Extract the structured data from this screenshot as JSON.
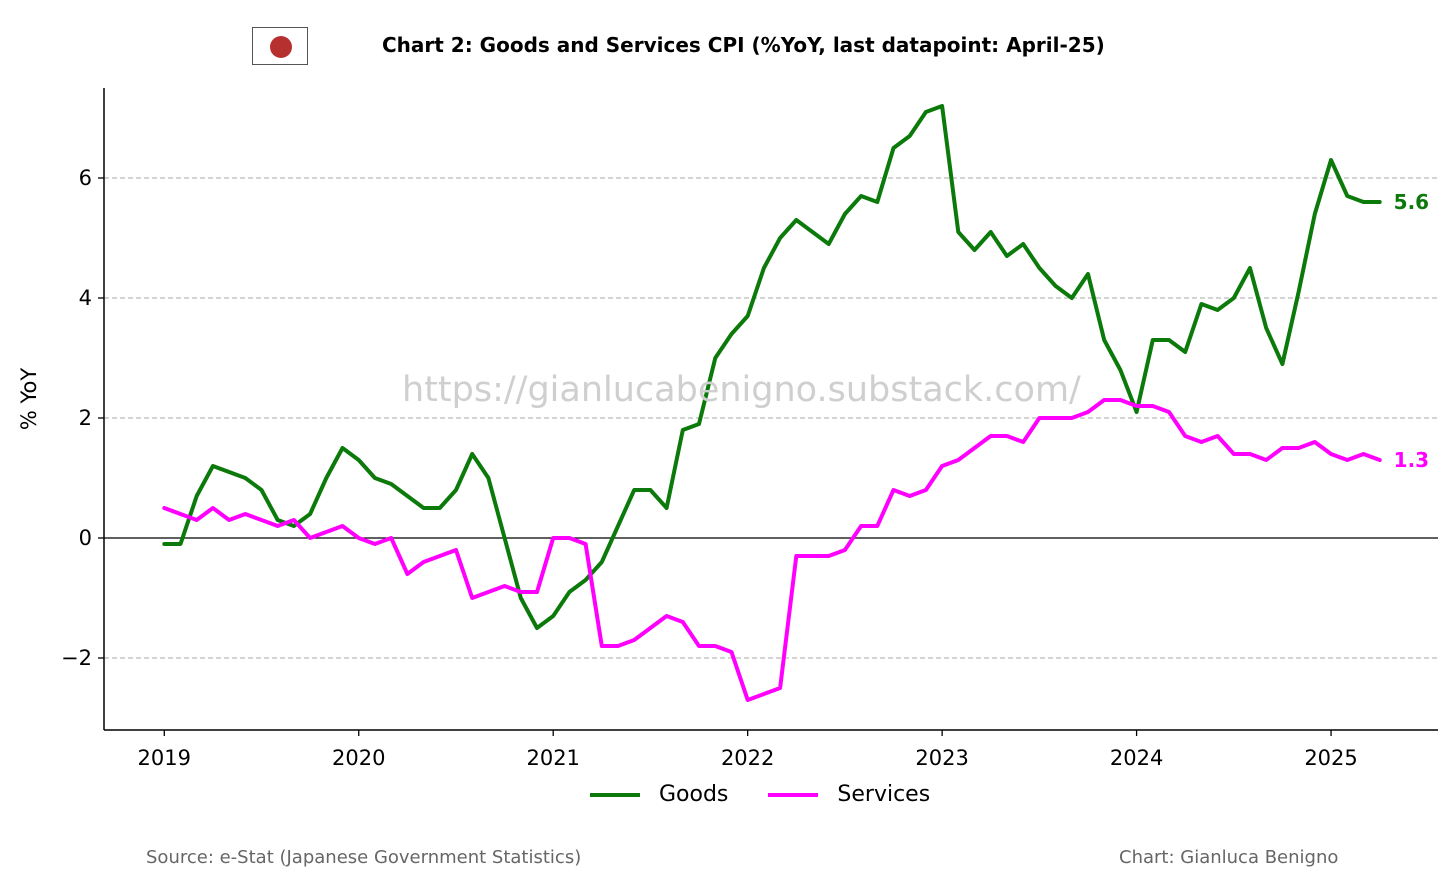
{
  "title": "Chart 2: Goods and Services CPI (%YoY, last datapoint: April-25)",
  "watermark": "https://gianlucabenigno.substack.com/",
  "source": "Source: e-Stat (Japanese Government Statistics)",
  "credit": "Chart: Gianluca Benigno",
  "flag": "japan-flag",
  "colors": {
    "goods": "#0b7a0b",
    "services": "#ff00ff",
    "grid": "#bbbbbb",
    "zero": "#000000"
  },
  "chart_data": {
    "type": "line",
    "ylabel": "% YoY",
    "xlabel": "",
    "x_start": "2019-01",
    "frequency": "monthly",
    "xlim": [
      2018.69,
      2025.55
    ],
    "ylim": [
      -3.2,
      7.5
    ],
    "x_ticks": [
      2019,
      2020,
      2021,
      2022,
      2023,
      2024,
      2025
    ],
    "y_ticks": [
      -2,
      0,
      2,
      4,
      6
    ],
    "y_tick_labels": [
      "−2",
      "0",
      "2",
      "4",
      "6"
    ],
    "grid": "horizontal dashed",
    "zero_line": true,
    "legend": "bottom-center",
    "series": [
      {
        "name": "Goods",
        "color": "#0b7a0b",
        "end_label": "5.6",
        "values": [
          -0.1,
          -0.1,
          0.7,
          1.2,
          1.1,
          1.0,
          0.8,
          0.3,
          0.2,
          0.4,
          1.0,
          1.5,
          1.3,
          1.0,
          0.9,
          0.7,
          0.5,
          0.5,
          0.8,
          1.4,
          1.0,
          0.0,
          -1.0,
          -1.5,
          -1.3,
          -0.9,
          -0.7,
          -0.4,
          0.2,
          0.8,
          0.8,
          0.5,
          1.8,
          1.9,
          3.0,
          3.4,
          3.7,
          4.5,
          5.0,
          5.3,
          5.1,
          4.9,
          5.4,
          5.7,
          5.6,
          6.5,
          6.7,
          7.1,
          7.2,
          5.1,
          4.8,
          5.1,
          4.7,
          4.9,
          4.5,
          4.2,
          4.0,
          4.4,
          3.3,
          2.8,
          2.1,
          3.3,
          3.3,
          3.1,
          3.9,
          3.8,
          4.0,
          4.5,
          3.5,
          2.9,
          4.1,
          5.4,
          6.3,
          5.7,
          5.6,
          5.6
        ]
      },
      {
        "name": "Services",
        "color": "#ff00ff",
        "end_label": "1.3",
        "values": [
          0.5,
          0.4,
          0.3,
          0.5,
          0.3,
          0.4,
          0.3,
          0.2,
          0.3,
          0.0,
          0.1,
          0.2,
          0.0,
          -0.1,
          0.0,
          -0.6,
          -0.4,
          -0.3,
          -0.2,
          -1.0,
          -0.9,
          -0.8,
          -0.9,
          -0.9,
          0.0,
          0.0,
          -0.1,
          -1.8,
          -1.8,
          -1.7,
          -1.5,
          -1.3,
          -1.4,
          -1.8,
          -1.8,
          -1.9,
          -2.7,
          -2.6,
          -2.5,
          -0.3,
          -0.3,
          -0.3,
          -0.2,
          0.2,
          0.2,
          0.8,
          0.7,
          0.8,
          1.2,
          1.3,
          1.5,
          1.7,
          1.7,
          1.6,
          2.0,
          2.0,
          2.0,
          2.1,
          2.3,
          2.3,
          2.2,
          2.2,
          2.1,
          1.7,
          1.6,
          1.7,
          1.4,
          1.4,
          1.3,
          1.5,
          1.5,
          1.6,
          1.4,
          1.3,
          1.4,
          1.3
        ]
      }
    ]
  }
}
